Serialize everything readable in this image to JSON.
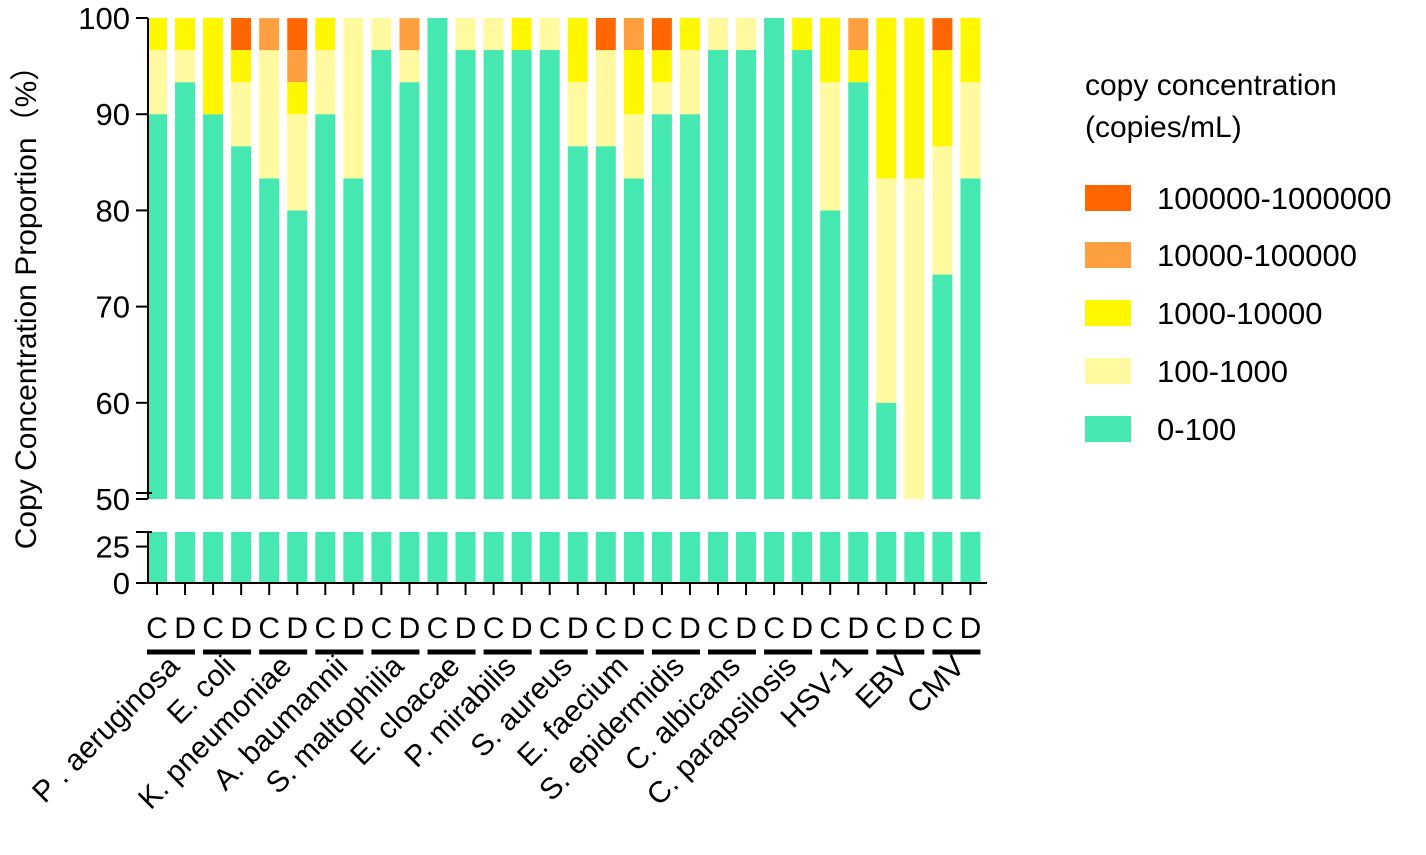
{
  "chart_data": {
    "type": "stacked-bar",
    "ylabel": "Copy Concentration Proportion（%）",
    "y_ticks_upper": [
      "100",
      "90",
      "80",
      "70",
      "60",
      "50"
    ],
    "y_ticks_lower": [
      "25",
      "0"
    ],
    "ylim_upper": [
      50,
      100
    ],
    "ylim_lower": [
      0,
      35
    ],
    "bar_labels": [
      "C",
      "D"
    ],
    "groups": [
      "P . aeruginosa",
      "E.  coli",
      "K. pneumoniae",
      "A. baumannii",
      "S. maltophilia",
      "E. cloacae",
      "P. mirabilis",
      "S. aureus",
      "E. faecium",
      "S. epidermidis",
      "C. albicans",
      "C. parapsilosis",
      "HSV-1",
      "EBV",
      "CMV"
    ],
    "legend_title": [
      "copy concentration",
      "(copies/mL)"
    ],
    "series": [
      {
        "name": "0-100",
        "color": "#45E8B0"
      },
      {
        "name": "100-1000",
        "color": "#FFFAA0"
      },
      {
        "name": "1000-10000",
        "color": "#FFF700"
      },
      {
        "name": "10000-100000",
        "color": "#FFA040"
      },
      {
        "name": "100000-1000000",
        "color": "#FF6600"
      }
    ],
    "bars": [
      [
        90.0,
        6.67,
        3.33,
        0,
        0
      ],
      [
        93.33,
        3.33,
        3.33,
        0,
        0
      ],
      [
        90.0,
        0,
        10.0,
        0,
        0
      ],
      [
        86.67,
        6.67,
        3.33,
        0,
        3.33
      ],
      [
        83.33,
        13.33,
        0,
        3.33,
        0
      ],
      [
        80.0,
        10.0,
        3.33,
        3.33,
        3.33
      ],
      [
        90.0,
        6.67,
        3.33,
        0,
        0
      ],
      [
        83.33,
        16.67,
        0,
        0,
        0
      ],
      [
        96.67,
        3.33,
        0,
        0,
        0
      ],
      [
        93.33,
        3.33,
        0,
        3.33,
        0
      ],
      [
        100,
        0,
        0,
        0,
        0
      ],
      [
        96.67,
        3.33,
        0,
        0,
        0
      ],
      [
        96.67,
        3.33,
        0,
        0,
        0
      ],
      [
        96.67,
        0,
        3.33,
        0,
        0
      ],
      [
        96.67,
        3.33,
        0,
        0,
        0
      ],
      [
        86.67,
        6.67,
        6.67,
        0,
        0
      ],
      [
        86.67,
        10.0,
        0,
        0,
        3.33
      ],
      [
        83.33,
        6.67,
        6.67,
        3.33,
        0
      ],
      [
        90.0,
        3.33,
        3.33,
        0,
        3.33
      ],
      [
        90.0,
        6.67,
        3.33,
        0,
        0
      ],
      [
        96.67,
        3.33,
        0,
        0,
        0
      ],
      [
        96.67,
        3.33,
        0,
        0,
        0
      ],
      [
        100,
        0,
        0,
        0,
        0
      ],
      [
        96.67,
        0,
        3.33,
        0,
        0
      ],
      [
        80.0,
        13.33,
        6.67,
        0,
        0
      ],
      [
        93.33,
        0,
        3.33,
        3.33,
        0
      ],
      [
        60.0,
        23.33,
        16.67,
        0,
        0
      ],
      [
        50.0,
        33.33,
        16.67,
        0,
        0
      ],
      [
        73.33,
        13.33,
        10.0,
        0,
        3.33
      ],
      [
        83.33,
        10.0,
        6.67,
        0,
        0
      ]
    ]
  }
}
